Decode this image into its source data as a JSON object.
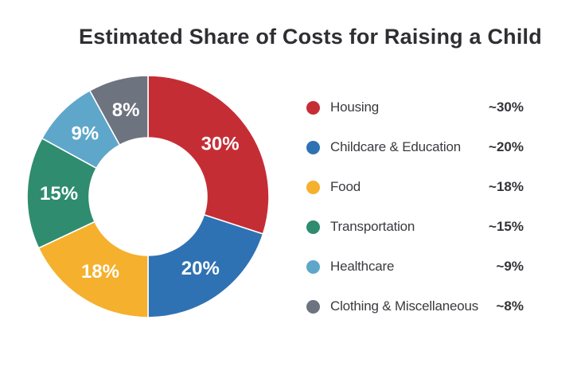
{
  "title": "Estimated Share of Costs for Raising a Child",
  "chart_data": {
    "type": "pie",
    "subtype": "donut",
    "title": "Estimated Share of Costs for Raising a Child",
    "unit": "percent",
    "total": 100,
    "start_angle_deg": 0,
    "direction": "clockwise",
    "legend_position": "right",
    "inner_radius_ratio": 0.49,
    "slice_label_color": "#ffffff",
    "background_color": "#ffffff",
    "title_color": "#2f2f33",
    "text_color": "#3b3b40",
    "segments": [
      {
        "label": "Housing",
        "value": 30,
        "approx_value": "~30%",
        "slice_label": "30%",
        "color": "#c52d35"
      },
      {
        "label": "Childcare & Education",
        "value": 20,
        "approx_value": "~20%",
        "slice_label": "20%",
        "color": "#2f72b3"
      },
      {
        "label": "Food",
        "value": 18,
        "approx_value": "~18%",
        "slice_label": "18%",
        "color": "#f5b02d"
      },
      {
        "label": "Transportation",
        "value": 15,
        "approx_value": "~15%",
        "slice_label": "15%",
        "color": "#2f8c6e"
      },
      {
        "label": "Healthcare",
        "value": 9,
        "approx_value": "~9%",
        "slice_label": "9%",
        "color": "#5ea7ca"
      },
      {
        "label": "Clothing & Miscellaneous",
        "value": 8,
        "approx_value": "~8%",
        "slice_label": "8%",
        "color": "#6e7380"
      }
    ]
  }
}
